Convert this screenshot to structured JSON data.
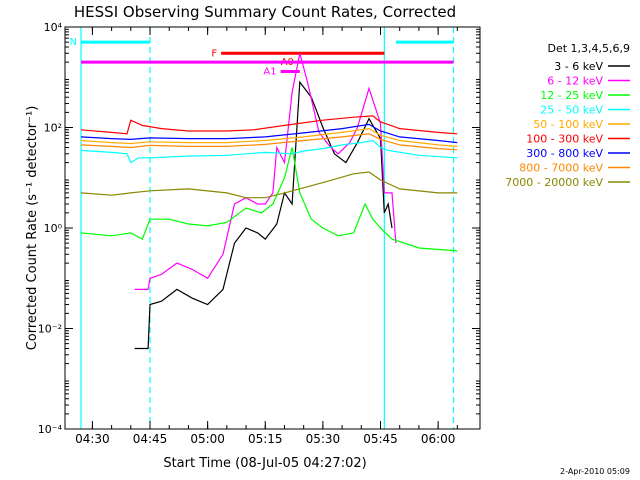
{
  "chart_data": {
    "type": "line",
    "title": "HESSI Observing Summary Count Rates, Corrected",
    "xlabel": "Start Time (08-Jul-05 04:27:02)",
    "ylabel": "Corrected Count Rate (s⁻¹ detector⁻¹)",
    "y_scale": "log",
    "ylim": [
      0.0001,
      10000
    ],
    "y_ticks": [
      {
        "v": 10000,
        "label": "10⁴"
      },
      {
        "v": 100,
        "label": "10²"
      },
      {
        "v": 1,
        "label": "10⁰"
      },
      {
        "v": 0.01,
        "label": "10⁻²"
      },
      {
        "v": 0.0001,
        "label": "10⁻⁴"
      }
    ],
    "xlim": [
      "04:27:02",
      "06:07:00"
    ],
    "x_ticks": [
      "04:30",
      "04:45",
      "05:00",
      "05:15",
      "05:30",
      "05:45",
      "06:00"
    ],
    "grid": false,
    "legend": {
      "title": "Det 1,3,4,5,6,9",
      "placement": "right"
    },
    "series": [
      {
        "name": "3 - 6 keV",
        "color": "#000000",
        "points": [
          [
            "04:41:00",
            0.004
          ],
          [
            "04:44:30",
            0.004
          ],
          [
            "04:45:00",
            0.03
          ],
          [
            "04:48:00",
            0.035
          ],
          [
            "04:52:00",
            0.06
          ],
          [
            "04:56:00",
            0.04
          ],
          [
            "05:00:00",
            0.03
          ],
          [
            "05:04:00",
            0.06
          ],
          [
            "05:07:00",
            0.5
          ],
          [
            "05:10:00",
            1.0
          ],
          [
            "05:13:00",
            0.8
          ],
          [
            "05:15:00",
            0.6
          ],
          [
            "05:18:00",
            1.2
          ],
          [
            "05:20:00",
            5
          ],
          [
            "05:22:00",
            3
          ],
          [
            "05:24:00",
            800
          ],
          [
            "05:27:00",
            400
          ],
          [
            "05:30:00",
            100
          ],
          [
            "05:33:00",
            30
          ],
          [
            "05:36:00",
            20
          ],
          [
            "05:39:00",
            50
          ],
          [
            "05:42:00",
            150
          ],
          [
            "05:45:00",
            60
          ],
          [
            "05:46:00",
            2
          ],
          [
            "05:47:00",
            3
          ],
          [
            "05:48:00",
            1
          ]
        ]
      },
      {
        "name": "6 - 12 keV",
        "color": "#ff00ff",
        "points": [
          [
            "04:41:00",
            0.06
          ],
          [
            "04:44:30",
            0.06
          ],
          [
            "04:45:00",
            0.1
          ],
          [
            "04:48:00",
            0.12
          ],
          [
            "04:52:00",
            0.2
          ],
          [
            "04:56:00",
            0.15
          ],
          [
            "05:00:00",
            0.1
          ],
          [
            "05:04:00",
            0.3
          ],
          [
            "05:07:00",
            3
          ],
          [
            "05:10:00",
            4
          ],
          [
            "05:13:00",
            3
          ],
          [
            "05:15:00",
            3
          ],
          [
            "05:17:00",
            5
          ],
          [
            "05:18:00",
            40
          ],
          [
            "05:20:00",
            20
          ],
          [
            "05:22:00",
            500
          ],
          [
            "05:24:00",
            3000
          ],
          [
            "05:26:00",
            800
          ],
          [
            "05:29:00",
            80
          ],
          [
            "05:32:00",
            40
          ],
          [
            "05:34:00",
            30
          ],
          [
            "05:37:00",
            50
          ],
          [
            "05:39:00",
            100
          ],
          [
            "05:42:00",
            600
          ],
          [
            "05:45:00",
            120
          ],
          [
            "05:46:00",
            5
          ],
          [
            "05:48:00",
            5
          ],
          [
            "05:49:00",
            0.5
          ]
        ]
      },
      {
        "name": "12 - 25 keV",
        "color": "#00ff00",
        "points": [
          [
            "04:27:00",
            0.8
          ],
          [
            "04:35:00",
            0.7
          ],
          [
            "04:40:00",
            0.8
          ],
          [
            "04:43:00",
            0.6
          ],
          [
            "04:45:00",
            1.5
          ],
          [
            "04:50:00",
            1.5
          ],
          [
            "04:55:00",
            1.2
          ],
          [
            "05:00:00",
            1.1
          ],
          [
            "05:05:00",
            1.3
          ],
          [
            "05:10:00",
            2.5
          ],
          [
            "05:14:00",
            2
          ],
          [
            "05:17:00",
            3
          ],
          [
            "05:20:00",
            10
          ],
          [
            "05:22:00",
            40
          ],
          [
            "05:24:00",
            5
          ],
          [
            "05:27:00",
            1.5
          ],
          [
            "05:30:00",
            1
          ],
          [
            "05:34:00",
            0.7
          ],
          [
            "05:38:00",
            0.8
          ],
          [
            "05:41:00",
            3
          ],
          [
            "05:43:00",
            1.5
          ],
          [
            "05:45:00",
            1
          ],
          [
            "05:48:00",
            0.6
          ],
          [
            "05:55:00",
            0.4
          ],
          [
            "06:05:00",
            0.35
          ]
        ]
      },
      {
        "name": "25 - 50 keV",
        "color": "#00ffff",
        "points": [
          [
            "04:27:00",
            35
          ],
          [
            "04:35:00",
            32
          ],
          [
            "04:39:00",
            30
          ],
          [
            "04:40:00",
            20
          ],
          [
            "04:42:00",
            25
          ],
          [
            "04:45:00",
            25
          ],
          [
            "04:55:00",
            27
          ],
          [
            "05:05:00",
            28
          ],
          [
            "05:15:00",
            32
          ],
          [
            "05:22:00",
            30
          ],
          [
            "05:25:00",
            34
          ],
          [
            "05:30:00",
            38
          ],
          [
            "05:35:00",
            45
          ],
          [
            "05:40:00",
            50
          ],
          [
            "05:43:00",
            55
          ],
          [
            "05:45:00",
            40
          ],
          [
            "05:47:00",
            35
          ],
          [
            "05:55:00",
            28
          ],
          [
            "06:05:00",
            25
          ]
        ]
      },
      {
        "name": "50 - 100 keV",
        "color": "#ffaa00",
        "points": [
          [
            "04:27:00",
            55
          ],
          [
            "04:35:00",
            50
          ],
          [
            "04:40:00",
            48
          ],
          [
            "04:45:00",
            52
          ],
          [
            "04:55:00",
            50
          ],
          [
            "05:05:00",
            50
          ],
          [
            "05:15:00",
            55
          ],
          [
            "05:25:00",
            65
          ],
          [
            "05:35:00",
            80
          ],
          [
            "05:42:00",
            95
          ],
          [
            "05:45:00",
            70
          ],
          [
            "05:50:00",
            55
          ],
          [
            "06:00:00",
            45
          ],
          [
            "06:05:00",
            42
          ]
        ]
      },
      {
        "name": "100 - 300 keV",
        "color": "#ff0000",
        "points": [
          [
            "04:27:00",
            90
          ],
          [
            "04:35:00",
            80
          ],
          [
            "04:39:00",
            75
          ],
          [
            "04:40:00",
            140
          ],
          [
            "04:43:00",
            110
          ],
          [
            "04:48:00",
            95
          ],
          [
            "04:55:00",
            85
          ],
          [
            "05:05:00",
            85
          ],
          [
            "05:12:00",
            90
          ],
          [
            "05:20:00",
            110
          ],
          [
            "05:30:00",
            140
          ],
          [
            "05:38:00",
            160
          ],
          [
            "05:43:00",
            170
          ],
          [
            "05:45:00",
            130
          ],
          [
            "05:50:00",
            95
          ],
          [
            "06:00:00",
            80
          ],
          [
            "06:05:00",
            75
          ]
        ]
      },
      {
        "name": "300 - 800 keV",
        "color": "#0000ff",
        "points": [
          [
            "04:27:00",
            65
          ],
          [
            "04:35:00",
            60
          ],
          [
            "04:40:00",
            58
          ],
          [
            "04:45:00",
            62
          ],
          [
            "04:55:00",
            60
          ],
          [
            "05:05:00",
            60
          ],
          [
            "05:15:00",
            65
          ],
          [
            "05:25:00",
            78
          ],
          [
            "05:35:00",
            95
          ],
          [
            "05:42:00",
            115
          ],
          [
            "05:45:00",
            85
          ],
          [
            "05:50:00",
            65
          ],
          [
            "06:00:00",
            55
          ],
          [
            "06:05:00",
            50
          ]
        ]
      },
      {
        "name": "800 - 7000 keV",
        "color": "#ff8800",
        "points": [
          [
            "04:27:00",
            45
          ],
          [
            "04:35:00",
            42
          ],
          [
            "04:40:00",
            40
          ],
          [
            "04:45:00",
            44
          ],
          [
            "04:55:00",
            42
          ],
          [
            "05:05:00",
            42
          ],
          [
            "05:15:00",
            46
          ],
          [
            "05:25:00",
            55
          ],
          [
            "05:35:00",
            65
          ],
          [
            "05:42:00",
            75
          ],
          [
            "05:45:00",
            58
          ],
          [
            "05:50:00",
            45
          ],
          [
            "06:00:00",
            38
          ],
          [
            "06:05:00",
            36
          ]
        ]
      },
      {
        "name": "7000 - 20000 keV",
        "color": "#888800",
        "points": [
          [
            "04:27:00",
            5
          ],
          [
            "04:35:00",
            4.5
          ],
          [
            "04:40:00",
            5
          ],
          [
            "04:45:00",
            5.5
          ],
          [
            "04:55:00",
            6
          ],
          [
            "05:05:00",
            5
          ],
          [
            "05:10:00",
            4
          ],
          [
            "05:15:00",
            4
          ],
          [
            "05:20:00",
            5
          ],
          [
            "05:30:00",
            8
          ],
          [
            "05:38:00",
            12
          ],
          [
            "05:42:00",
            13
          ],
          [
            "05:45:00",
            9
          ],
          [
            "05:50:00",
            6
          ],
          [
            "06:00:00",
            5
          ],
          [
            "06:05:00",
            5
          ]
        ]
      }
    ],
    "state_bars": [
      {
        "label": "N",
        "color": "#00ffff",
        "y": 5000,
        "segments": [
          [
            "04:27:02",
            "04:45:00"
          ],
          [
            "05:49:00",
            "06:04:00"
          ]
        ]
      },
      {
        "label": "F",
        "color": "#ff0000",
        "y": 3000,
        "segments": [
          [
            "05:03:30",
            "05:46:00"
          ]
        ]
      },
      {
        "label": "A0",
        "color": "#ff0000",
        "y": 2000,
        "segments": [
          [
            "05:23:30",
            "05:24:30"
          ]
        ]
      },
      {
        "label": "A1",
        "color": "#ff00ff",
        "y": 1300,
        "segments": [
          [
            "05:19:00",
            "05:24:00"
          ]
        ]
      },
      {
        "label": "",
        "color": "#ff00ff",
        "y": 2000,
        "segments": [
          [
            "04:27:02",
            "06:04:00"
          ]
        ]
      }
    ],
    "vertical_markers": [
      {
        "t": "04:27:02",
        "style": "solid"
      },
      {
        "t": "04:45:00",
        "style": "dashed"
      },
      {
        "t": "05:46:00",
        "style": "solid"
      },
      {
        "t": "06:04:00",
        "style": "dashed"
      }
    ]
  },
  "footer": {
    "timestamp": "2-Apr-2010 05:09"
  }
}
